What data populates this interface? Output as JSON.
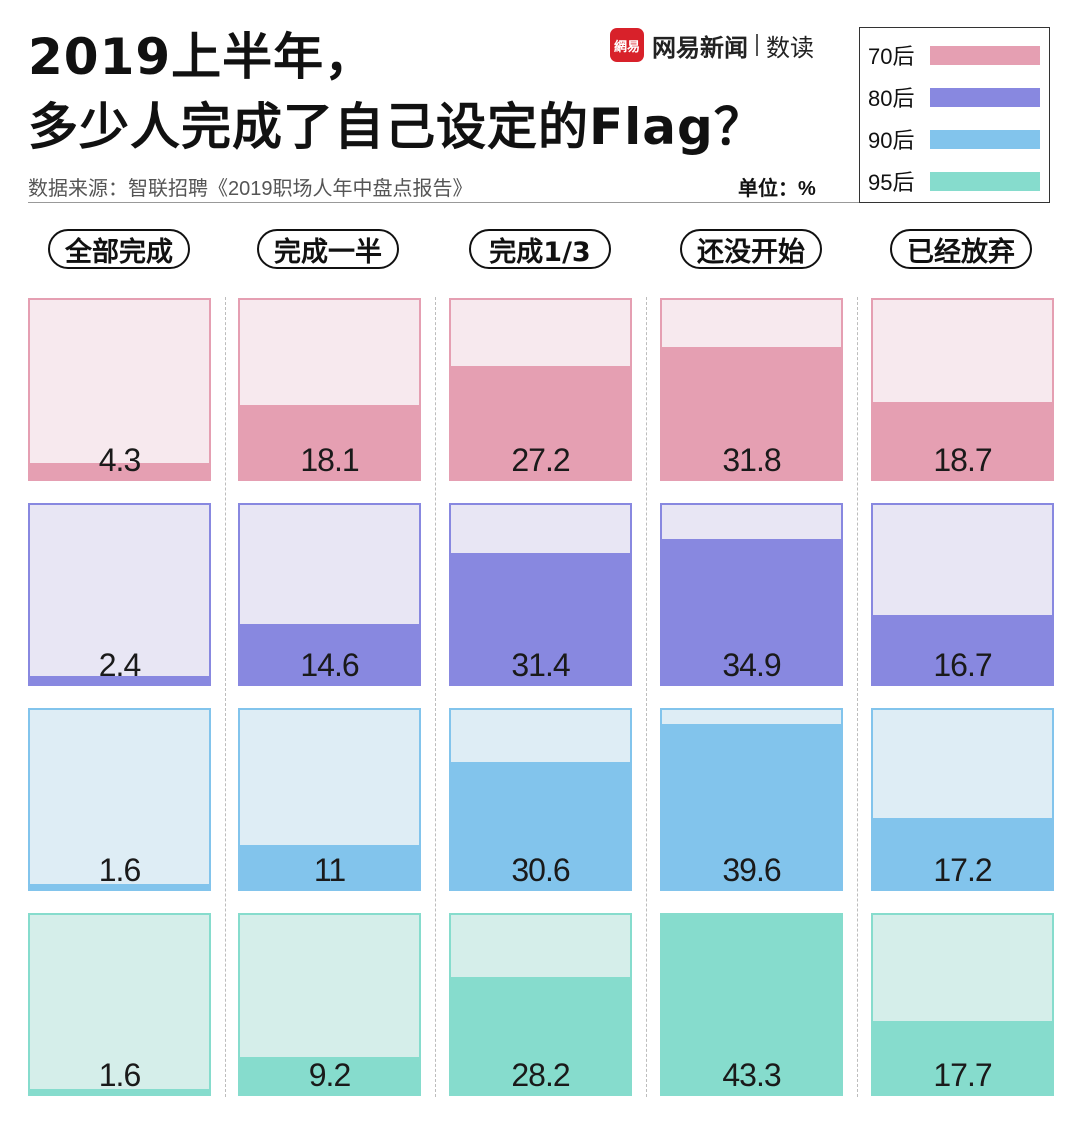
{
  "title": {
    "line1": "2019上半年，",
    "line2": "多少人完成了自己设定的Flag？"
  },
  "source": "数据来源：智联招聘《2019职场人年中盘点报告》",
  "unit": "单位：%",
  "brand": {
    "logo_text": "網易",
    "name": "网易新闻",
    "sub": "数读"
  },
  "colors": {
    "70后": {
      "fill": "#e59fb2",
      "bg": "#f7e9ee"
    },
    "80后": {
      "fill": "#8888e0",
      "bg": "#e8e6f4"
    },
    "90后": {
      "fill": "#82c4ec",
      "bg": "#deedf5"
    },
    "95后": {
      "fill": "#86dccd",
      "bg": "#d5eeea"
    }
  },
  "chart_data": {
    "type": "bar",
    "categories": [
      "全部完成",
      "完成一半",
      "完成1/3",
      "还没开始",
      "已经放弃"
    ],
    "series": [
      {
        "name": "70后",
        "values": [
          4.3,
          18.1,
          27.2,
          31.8,
          18.7
        ]
      },
      {
        "name": "80后",
        "values": [
          2.4,
          14.6,
          31.4,
          34.9,
          16.7
        ]
      },
      {
        "name": "90后",
        "values": [
          1.6,
          11,
          30.6,
          39.6,
          17.2
        ]
      },
      {
        "name": "95后",
        "values": [
          1.6,
          9.2,
          28.2,
          43.3,
          17.7
        ]
      }
    ],
    "ylim": [
      0,
      43.3
    ]
  }
}
